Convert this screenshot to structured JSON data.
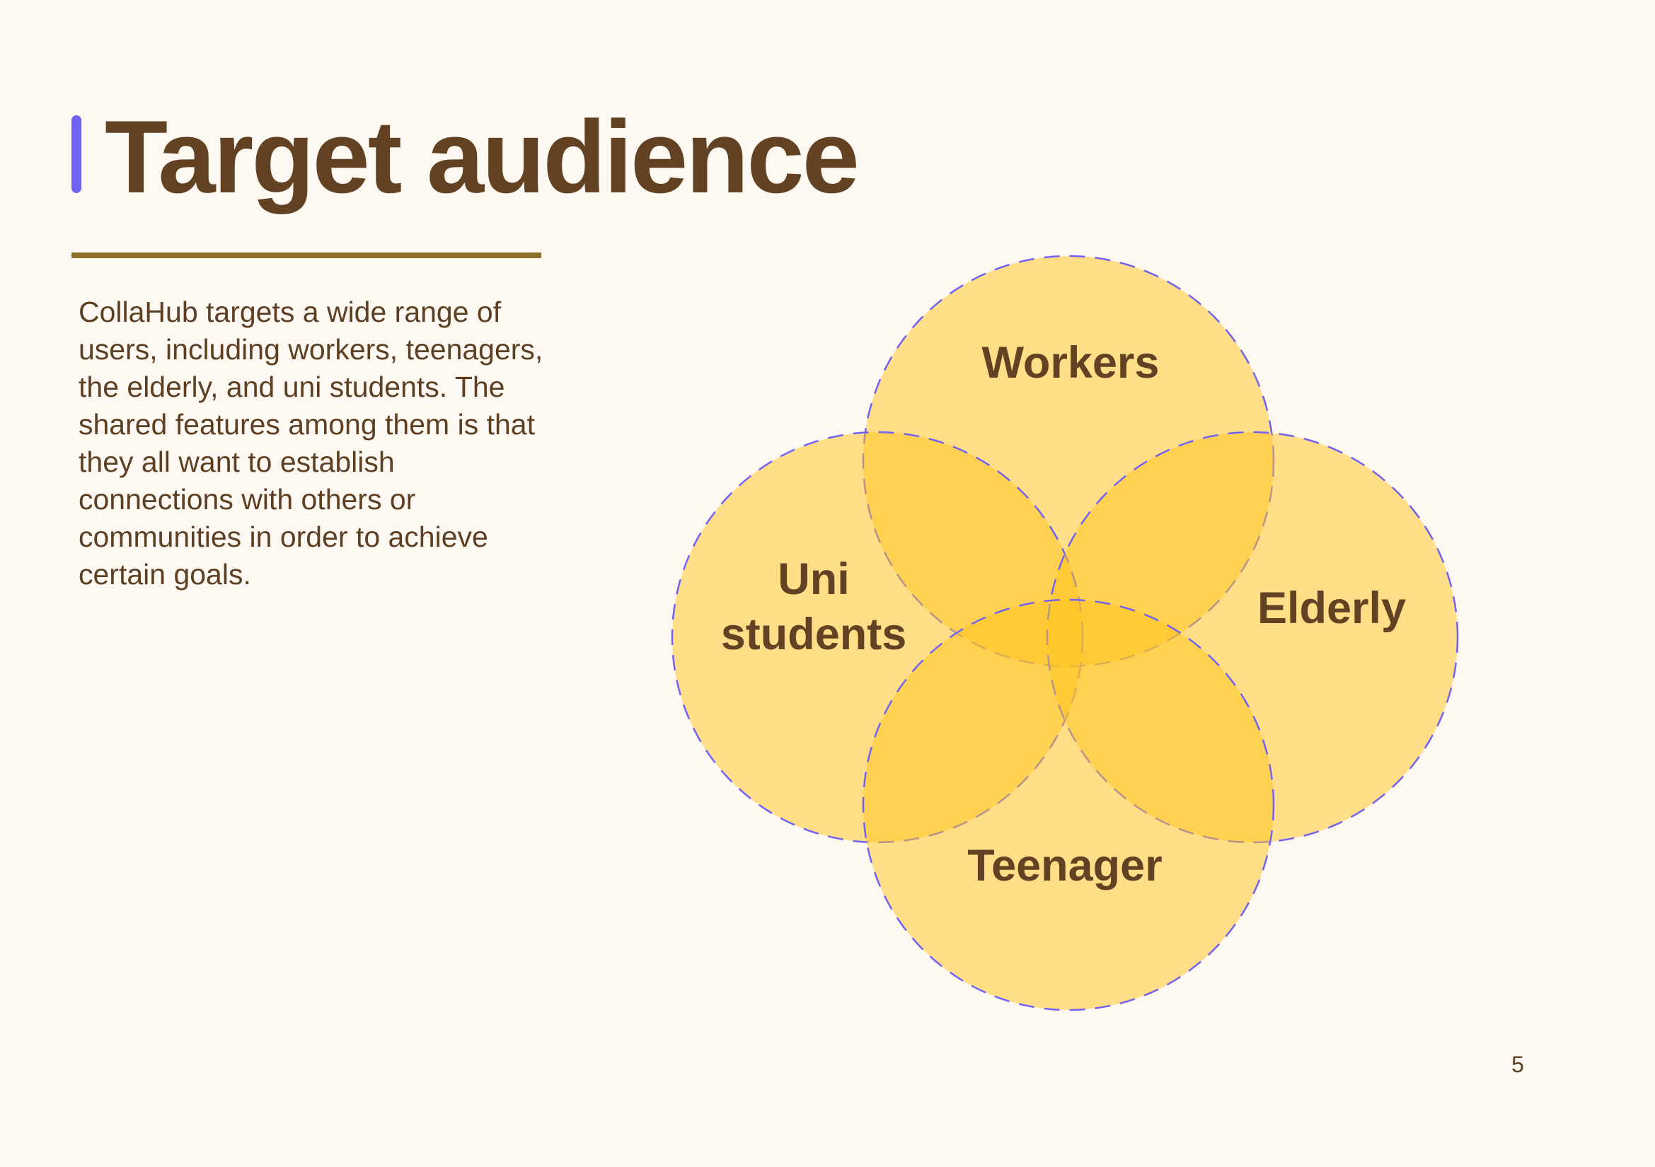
{
  "slide": {
    "title": "Target audience",
    "description": "CollaHub targets a wide range of users, including workers, teenagers, the elderly, and uni students. The shared features among them is that they all want to establish connections with others or communities in order to achieve certain goals.",
    "page_number": "5"
  },
  "diagram": {
    "type": "venn",
    "circles": [
      {
        "name": "workers",
        "label": "Workers"
      },
      {
        "name": "uni-students",
        "label_lines": [
          "Uni",
          "students"
        ]
      },
      {
        "name": "elderly",
        "label": "Elderly"
      },
      {
        "name": "teenager",
        "label": "Teenager"
      }
    ]
  },
  "colors": {
    "background": "#fef8f2",
    "title_text": "#624222",
    "body_text": "#5d4023",
    "accent_bar": "#7063f4",
    "underline": "#8d6f2c",
    "circle_fill": "#ffc41c",
    "circle_stroke": "#7063f4"
  }
}
